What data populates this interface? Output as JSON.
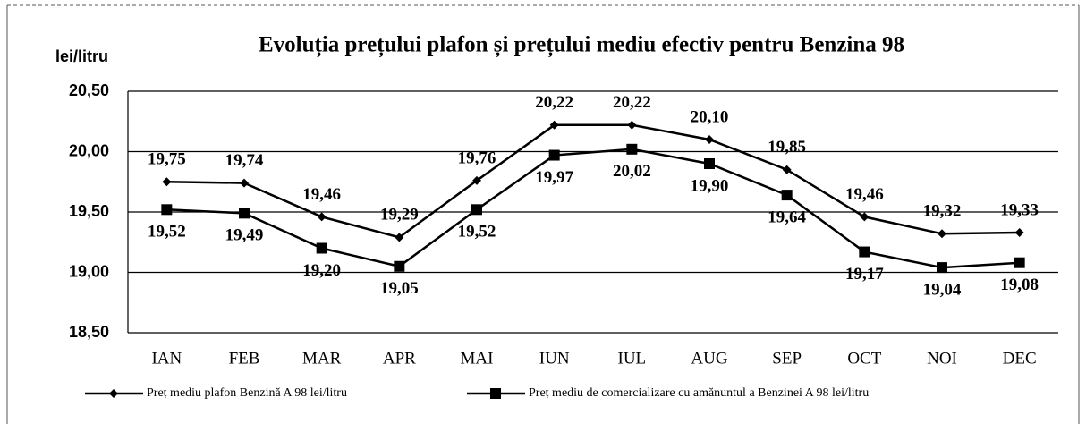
{
  "chart_data": {
    "type": "line",
    "title": "Evoluția prețului plafon și prețului mediu efectiv pentru Benzina 98",
    "y_label": "lei/litru",
    "categories": [
      "IAN",
      "FEB",
      "MAR",
      "APR",
      "MAI",
      "IUN",
      "IUL",
      "AUG",
      "SEP",
      "OCT",
      "NOI",
      "DEC"
    ],
    "series": [
      {
        "name": "Preț mediu plafon Benzină A 98  lei/litru",
        "color": "#000000",
        "marker": "diamond",
        "values": [
          19.75,
          19.74,
          19.46,
          19.29,
          19.76,
          20.22,
          20.22,
          20.1,
          19.85,
          19.46,
          19.32,
          19.33
        ],
        "value_labels": [
          "19,75",
          "19,74",
          "19,46",
          "19,29",
          "19,76",
          "20,22",
          "20,22",
          "20,10",
          "19,85",
          "19,46",
          "19,32",
          "19,33"
        ]
      },
      {
        "name": "Preț mediu de comercializare cu amănuntul a Benzinei A 98 lei/litru",
        "color": "#000000",
        "marker": "square",
        "values": [
          19.52,
          19.49,
          19.2,
          19.05,
          19.52,
          19.97,
          20.02,
          19.9,
          19.64,
          19.17,
          19.04,
          19.08
        ],
        "value_labels": [
          "19,52",
          "19,49",
          "19,20",
          "19,05",
          "19,52",
          "19,97",
          "20,02",
          "19,90",
          "19,64",
          "19,17",
          "19,04",
          "19,08"
        ]
      }
    ],
    "ylim": [
      18.5,
      20.5
    ],
    "yticks": [
      {
        "value": 18.5,
        "label": "18,50"
      },
      {
        "value": 19.0,
        "label": "19,00"
      },
      {
        "value": 19.5,
        "label": "19,50"
      },
      {
        "value": 20.0,
        "label": "20,00"
      },
      {
        "value": 20.5,
        "label": "20,50"
      }
    ],
    "grid": true,
    "legend": "bottom"
  }
}
